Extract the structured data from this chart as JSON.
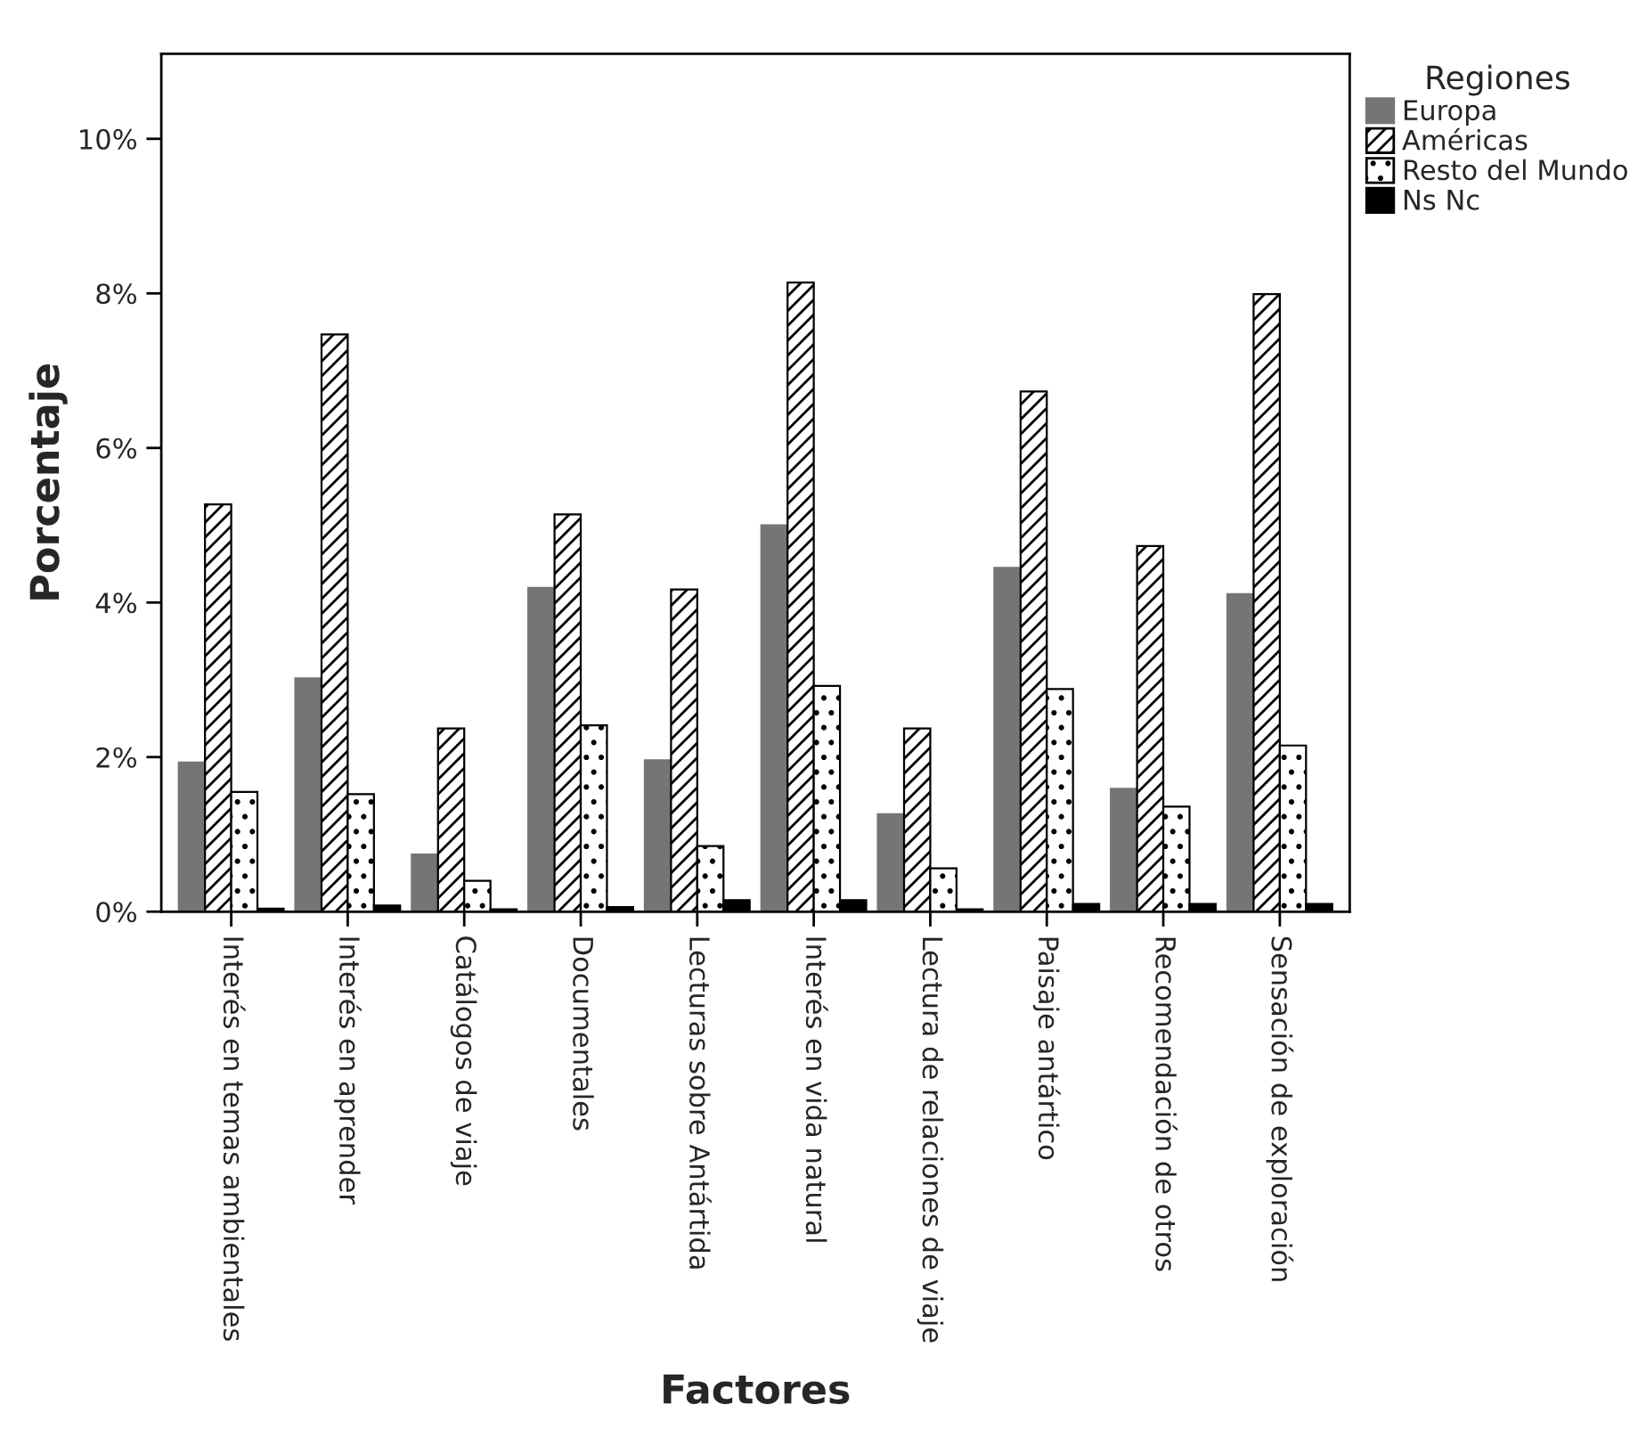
{
  "chart_data": {
    "type": "bar",
    "xlabel": "Factores",
    "ylabel": "Porcentaje",
    "legend_title": "Regiones",
    "legend": "top right",
    "categories": [
      "Interés en temas ambientales",
      "Interés en aprender",
      "Catálogos de viaje",
      "Documentales",
      "Lecturas sobre Antártida",
      "Interés en vida natural",
      "Lectura de relaciones de viaje",
      "Paisaje antártico",
      "Recomendación de otros",
      "Sensación de exploración"
    ],
    "series": [
      {
        "name": "Europa",
        "color": "#757575",
        "values": [
          1.93,
          3.02,
          0.74,
          4.19,
          1.96,
          5.0,
          1.26,
          4.45,
          1.59,
          4.11
        ]
      },
      {
        "name": "Américas",
        "color": "#000000",
        "values": [
          5.27,
          7.47,
          2.37,
          5.14,
          4.17,
          8.14,
          2.37,
          6.73,
          4.73,
          7.99
        ]
      },
      {
        "name": "Resto del Mundo",
        "color": "#000000",
        "values": [
          1.55,
          1.52,
          0.4,
          2.41,
          0.85,
          2.92,
          0.56,
          2.88,
          1.36,
          2.15
        ]
      },
      {
        "name": "Ns Nc",
        "color": "#000000",
        "values": [
          0.04,
          0.08,
          0.03,
          0.06,
          0.15,
          0.15,
          0.03,
          0.1,
          0.1,
          0.1
        ]
      }
    ],
    "ylim": [
      0,
      11.1
    ],
    "yticks": [
      {
        "value": 0,
        "label": "0%"
      },
      {
        "value": 2,
        "label": "2%"
      },
      {
        "value": 4,
        "label": "4%"
      },
      {
        "value": 6,
        "label": "6%"
      },
      {
        "value": 8,
        "label": "8%"
      },
      {
        "value": 10,
        "label": "10%"
      }
    ],
    "grid": false
  }
}
